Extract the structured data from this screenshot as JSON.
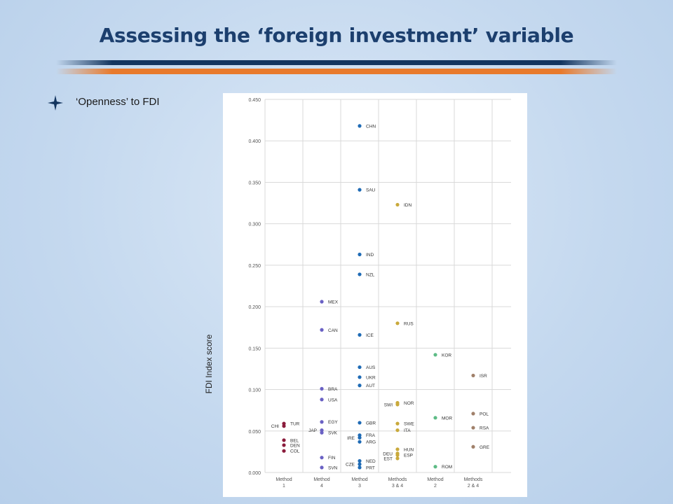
{
  "slide": {
    "title": "Assessing the ‘foreign investment’ variable",
    "bullet": "‘Openness’ to FDI"
  },
  "colors": {
    "title": "#1c3f6e",
    "band_dark": "#13355f",
    "band_orange": "#e87a2c",
    "bullet_icon": "#13355f"
  },
  "chart_data": {
    "type": "scatter",
    "title": "",
    "xlabel": "",
    "ylabel": "FDI Index score",
    "ylim": [
      0,
      0.45
    ],
    "yticks": [
      "0.000",
      "0.050",
      "0.100",
      "0.150",
      "0.200",
      "0.250",
      "0.300",
      "0.350",
      "0.400",
      "0.450"
    ],
    "grid": true,
    "categories": [
      {
        "line1": "Method",
        "line2": "1"
      },
      {
        "line1": "Method",
        "line2": "4"
      },
      {
        "line1": "Method",
        "line2": "3"
      },
      {
        "line1": "Methods",
        "line2": "3 & 4"
      },
      {
        "line1": "Method",
        "line2": "2"
      },
      {
        "line1": "Methods",
        "line2": "2 & 4"
      }
    ],
    "series": [
      {
        "category": 0,
        "color": "#8b1c3c",
        "points": [
          {
            "label": "TUR",
            "value": 0.059,
            "side": "right"
          },
          {
            "label": "CHI",
            "value": 0.056,
            "side": "left"
          },
          {
            "label": "BEL",
            "value": 0.039,
            "side": "right"
          },
          {
            "label": "DEN",
            "value": 0.033,
            "side": "right"
          },
          {
            "label": "COL",
            "value": 0.026,
            "side": "right"
          }
        ]
      },
      {
        "category": 1,
        "color": "#6a61c4",
        "points": [
          {
            "label": "MEX",
            "value": 0.206,
            "side": "right"
          },
          {
            "label": "CAN",
            "value": 0.172,
            "side": "right"
          },
          {
            "label": "BRA",
            "value": 0.101,
            "side": "right"
          },
          {
            "label": "USA",
            "value": 0.088,
            "side": "right"
          },
          {
            "label": "EGY",
            "value": 0.061,
            "side": "right"
          },
          {
            "label": "JAP",
            "value": 0.051,
            "side": "left"
          },
          {
            "label": "SVK",
            "value": 0.048,
            "side": "right"
          },
          {
            "label": "FIN",
            "value": 0.018,
            "side": "right"
          },
          {
            "label": "SVN",
            "value": 0.006,
            "side": "right"
          }
        ]
      },
      {
        "category": 2,
        "color": "#1f6bb5",
        "points": [
          {
            "label": "CHN",
            "value": 0.418,
            "side": "right"
          },
          {
            "label": "SAU",
            "value": 0.341,
            "side": "right"
          },
          {
            "label": "IND",
            "value": 0.263,
            "side": "right"
          },
          {
            "label": "NZL",
            "value": 0.239,
            "side": "right"
          },
          {
            "label": "ICE",
            "value": 0.166,
            "side": "right"
          },
          {
            "label": "AUS",
            "value": 0.127,
            "side": "right"
          },
          {
            "label": "UKR",
            "value": 0.115,
            "side": "right"
          },
          {
            "label": "AUT",
            "value": 0.105,
            "side": "right"
          },
          {
            "label": "GBR",
            "value": 0.06,
            "side": "right"
          },
          {
            "label": "FRA",
            "value": 0.045,
            "side": "right"
          },
          {
            "label": "IRE",
            "value": 0.042,
            "side": "left"
          },
          {
            "label": "ARG",
            "value": 0.037,
            "side": "right"
          },
          {
            "label": "NED",
            "value": 0.014,
            "side": "right"
          },
          {
            "label": "CZE",
            "value": 0.01,
            "side": "left"
          },
          {
            "label": "PRT",
            "value": 0.006,
            "side": "right"
          }
        ]
      },
      {
        "category": 3,
        "color": "#c9a93b",
        "points": [
          {
            "label": "IDN",
            "value": 0.323,
            "side": "right"
          },
          {
            "label": "RUS",
            "value": 0.18,
            "side": "right"
          },
          {
            "label": "NOR",
            "value": 0.084,
            "side": "right"
          },
          {
            "label": "SWI",
            "value": 0.082,
            "side": "left"
          },
          {
            "label": "SWE",
            "value": 0.059,
            "side": "right"
          },
          {
            "label": "ITA",
            "value": 0.051,
            "side": "right"
          },
          {
            "label": "HUN",
            "value": 0.028,
            "side": "right"
          },
          {
            "label": "DEU",
            "value": 0.023,
            "side": "left"
          },
          {
            "label": "ESP",
            "value": 0.021,
            "side": "right"
          },
          {
            "label": "EST",
            "value": 0.017,
            "side": "left"
          }
        ]
      },
      {
        "category": 4,
        "color": "#5dbb85",
        "points": [
          {
            "label": "KOR",
            "value": 0.142,
            "side": "right"
          },
          {
            "label": "MOR",
            "value": 0.066,
            "side": "right"
          },
          {
            "label": "ROM",
            "value": 0.007,
            "side": "right"
          }
        ]
      },
      {
        "category": 5,
        "color": "#a0806a",
        "points": [
          {
            "label": "ISR",
            "value": 0.117,
            "side": "right"
          },
          {
            "label": "POL",
            "value": 0.071,
            "side": "right"
          },
          {
            "label": "RSA",
            "value": 0.054,
            "side": "right"
          },
          {
            "label": "GRE",
            "value": 0.031,
            "side": "right"
          }
        ]
      }
    ]
  }
}
